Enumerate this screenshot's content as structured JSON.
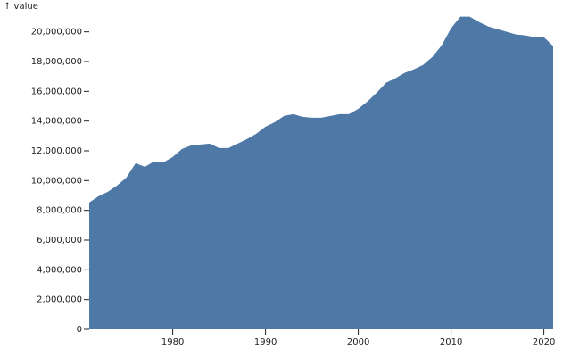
{
  "chart_data": {
    "type": "area",
    "y_label": "↑ value",
    "color": "#4e79a7",
    "x": [
      1971,
      1972,
      1973,
      1974,
      1975,
      1976,
      1977,
      1978,
      1979,
      1980,
      1981,
      1982,
      1983,
      1984,
      1985,
      1986,
      1987,
      1988,
      1989,
      1990,
      1991,
      1992,
      1993,
      1994,
      1995,
      1996,
      1997,
      1998,
      1999,
      2000,
      2001,
      2002,
      2003,
      2004,
      2005,
      2006,
      2007,
      2008,
      2009,
      2010,
      2011,
      2012,
      2013,
      2014,
      2015,
      2016,
      2017,
      2018,
      2019,
      2020,
      2021
    ],
    "values": [
      8530000,
      8950000,
      9250000,
      9670000,
      10200000,
      11170000,
      10930000,
      11290000,
      11230000,
      11590000,
      12130000,
      12370000,
      12430000,
      12490000,
      12190000,
      12190000,
      12490000,
      12790000,
      13150000,
      13630000,
      13930000,
      14350000,
      14470000,
      14290000,
      14230000,
      14230000,
      14350000,
      14470000,
      14470000,
      14830000,
      15320000,
      15920000,
      16580000,
      16880000,
      17240000,
      17480000,
      17780000,
      18320000,
      19100000,
      20240000,
      21020000,
      21020000,
      20660000,
      20360000,
      20180000,
      20000000,
      19820000,
      19760000,
      19640000,
      19640000,
      19040000
    ],
    "xlim": [
      1971,
      2021
    ],
    "xticks": [
      1980,
      1990,
      2000,
      2010,
      2020
    ],
    "ylim": [
      0,
      21000000
    ],
    "yticks": [
      0,
      {
        "value": 2000000,
        "label": "2,000,000"
      },
      {
        "value": 4000000,
        "label": "4,000,000"
      },
      {
        "value": 6000000,
        "label": "6,000,000"
      },
      {
        "value": 8000000,
        "label": "8,000,000"
      },
      {
        "value": 10000000,
        "label": "10,000,000"
      },
      {
        "value": 12000000,
        "label": "12,000,000"
      },
      {
        "value": 14000000,
        "label": "14,000,000"
      },
      {
        "value": 16000000,
        "label": "16,000,000"
      },
      {
        "value": 18000000,
        "label": "18,000,000"
      },
      {
        "value": 20000000,
        "label": "20,000,000"
      }
    ]
  }
}
